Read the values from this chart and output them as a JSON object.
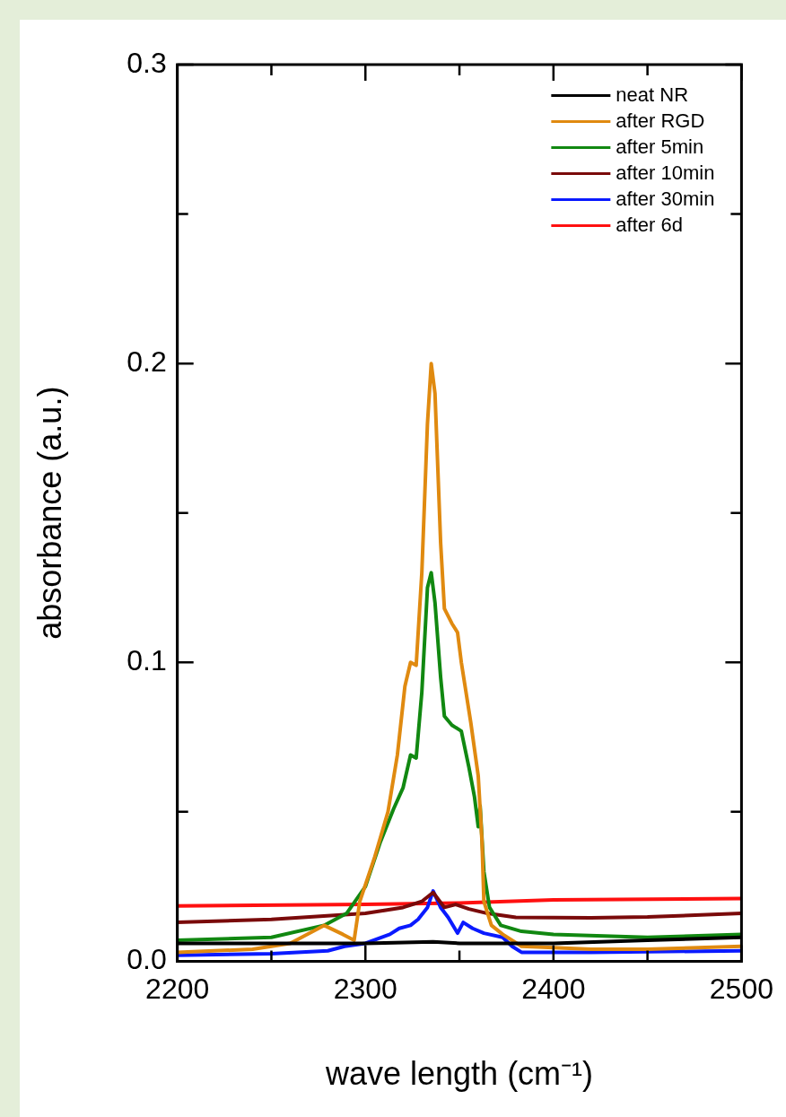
{
  "chart_data": {
    "type": "line",
    "xlabel": "wave length (cm⁻¹)",
    "ylabel": "absorbance (a.u.)",
    "xlim": [
      2200,
      2500
    ],
    "xticks": [
      2200,
      {
        "value": 2250,
        "label": null
      },
      2300,
      {
        "value": 2350,
        "label": null
      },
      2400,
      {
        "value": 2450,
        "label": null
      },
      2500
    ],
    "ylim": [
      0,
      0.3
    ],
    "yticks": [
      {
        "value": 0,
        "label": "0.0"
      },
      {
        "value": 0.05,
        "label": null
      },
      0.1,
      {
        "value": 0.15,
        "label": null
      },
      0.2,
      {
        "value": 0.25,
        "label": null
      },
      0.3
    ],
    "grid": false,
    "legend": "top right",
    "marker": "none",
    "line_style": "solid",
    "series": [
      {
        "name": "neat NR",
        "color": "#000000",
        "x": [
          2200,
          2250,
          2300,
          2336,
          2350,
          2400,
          2450,
          2500
        ],
        "values": [
          0.006,
          0.006,
          0.006,
          0.0065,
          0.006,
          0.006,
          0.007,
          0.008
        ]
      },
      {
        "name": "after RGD",
        "color": "#e08a10",
        "x": [
          2200,
          2240,
          2260,
          2278,
          2288,
          2294,
          2297,
          2305,
          2312,
          2317,
          2321,
          2324,
          2327,
          2330,
          2333,
          2335,
          2337,
          2340,
          2342,
          2346,
          2349,
          2351,
          2356,
          2360,
          2362,
          2363,
          2367,
          2373,
          2383,
          2420,
          2450,
          2500
        ],
        "values": [
          0.003,
          0.004,
          0.006,
          0.012,
          0.009,
          0.007,
          0.02,
          0.035,
          0.05,
          0.069,
          0.092,
          0.1,
          0.099,
          0.13,
          0.18,
          0.2,
          0.19,
          0.14,
          0.118,
          0.113,
          0.11,
          0.1,
          0.08,
          0.062,
          0.04,
          0.02,
          0.012,
          0.009,
          0.005,
          0.004,
          0.004,
          0.005
        ]
      },
      {
        "name": "after 5min",
        "color": "#118811",
        "x": [
          2200,
          2250,
          2278,
          2290,
          2300,
          2308,
          2315,
          2320,
          2324,
          2327,
          2330,
          2333,
          2335,
          2337,
          2340,
          2342,
          2346,
          2351,
          2355,
          2358,
          2360,
          2361,
          2363,
          2366,
          2372,
          2383,
          2400,
          2450,
          2500
        ],
        "values": [
          0.007,
          0.008,
          0.012,
          0.016,
          0.025,
          0.04,
          0.051,
          0.058,
          0.069,
          0.068,
          0.09,
          0.125,
          0.13,
          0.12,
          0.095,
          0.082,
          0.079,
          0.077,
          0.065,
          0.055,
          0.045,
          0.052,
          0.03,
          0.018,
          0.012,
          0.01,
          0.009,
          0.008,
          0.009
        ]
      },
      {
        "name": "after 10min",
        "color": "#7a0a0a",
        "x": [
          2200,
          2250,
          2300,
          2320,
          2330,
          2336,
          2342,
          2348,
          2355,
          2365,
          2380,
          2420,
          2450,
          2500
        ],
        "values": [
          0.013,
          0.014,
          0.016,
          0.018,
          0.02,
          0.023,
          0.018,
          0.019,
          0.0175,
          0.016,
          0.0147,
          0.0145,
          0.0148,
          0.016
        ]
      },
      {
        "name": "after 30min",
        "color": "#0a1aff",
        "x": [
          2200,
          2250,
          2280,
          2289,
          2300,
          2313,
          2318,
          2324,
          2328,
          2333,
          2336,
          2340,
          2344,
          2349,
          2352,
          2357,
          2363,
          2373,
          2378,
          2383,
          2420,
          2500
        ],
        "values": [
          0.002,
          0.0025,
          0.0035,
          0.005,
          0.006,
          0.009,
          0.011,
          0.012,
          0.014,
          0.018,
          0.0235,
          0.018,
          0.0147,
          0.0094,
          0.013,
          0.011,
          0.0094,
          0.008,
          0.005,
          0.003,
          0.003,
          0.0035
        ]
      },
      {
        "name": "after 6d",
        "color": "#ff1010",
        "x": [
          2200,
          2300,
          2350,
          2400,
          2500
        ],
        "values": [
          0.0185,
          0.019,
          0.0195,
          0.0205,
          0.021
        ]
      }
    ]
  }
}
